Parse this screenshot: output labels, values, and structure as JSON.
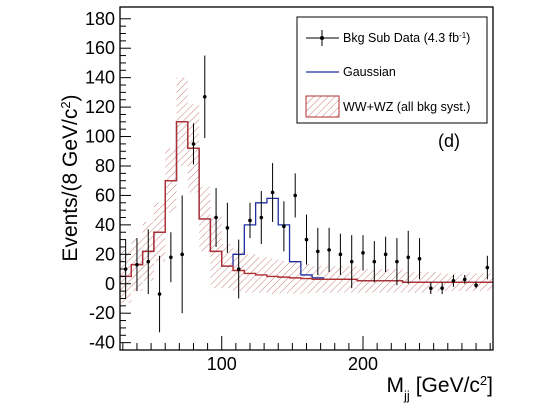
{
  "chart_data": {
    "type": "histogram",
    "xlabel": "M",
    "xlabel_sub": "jj",
    "xlabel_unit": "[GeV/c",
    "xlabel_unit_sup": "2",
    "xlabel_unit_close": "]",
    "ylabel": "Events/(8 GeV/c",
    "ylabel_sup": "2",
    "ylabel_close": ")",
    "xlim": [
      28,
      292
    ],
    "ylim": [
      -45,
      188
    ],
    "xticks": [
      {
        "value": 100,
        "label": "100"
      },
      {
        "value": 200,
        "label": "200"
      }
    ],
    "yticks": [
      {
        "value": -40,
        "label": "-40"
      },
      {
        "value": -20,
        "label": "-20"
      },
      {
        "value": 0,
        "label": "0"
      },
      {
        "value": 20,
        "label": "20"
      },
      {
        "value": 40,
        "label": "40"
      },
      {
        "value": 60,
        "label": "60"
      },
      {
        "value": 80,
        "label": "80"
      },
      {
        "value": 100,
        "label": "100"
      },
      {
        "value": 120,
        "label": "120"
      },
      {
        "value": 140,
        "label": "140"
      },
      {
        "value": 160,
        "label": "160"
      },
      {
        "value": 180,
        "label": "180"
      }
    ],
    "panel_label": "(d)",
    "bin_width": 8,
    "bin_edges_start": 28,
    "legend": {
      "placement": "top-right",
      "entries": [
        {
          "label": "Bkg Sub Data (4.3 fb",
          "sup": "-1",
          "close": ")",
          "style": "marker"
        },
        {
          "label": "Gaussian",
          "style": "line",
          "color": "#1f2fa0"
        },
        {
          "label": "WW+WZ (all bkg syst.)",
          "style": "hatched",
          "color": "#b03030"
        }
      ]
    },
    "series": [
      {
        "name": "Bkg Sub Data (4.3 fb-1)",
        "style": "points",
        "x": [
          32,
          40,
          48,
          56,
          64,
          72,
          80,
          88,
          96,
          104,
          112,
          120,
          128,
          136,
          144,
          152,
          160,
          168,
          176,
          184,
          192,
          200,
          208,
          216,
          224,
          232,
          240,
          248,
          256,
          264,
          272,
          280,
          288
        ],
        "y": [
          10,
          13,
          15,
          -7,
          18,
          20,
          95,
          127,
          45,
          38,
          10,
          43,
          45,
          62,
          39,
          60,
          30,
          22,
          23,
          20,
          15,
          21,
          15,
          20,
          15,
          18,
          17,
          -3,
          -3,
          2,
          3,
          -1,
          11
        ],
        "yerr": [
          20,
          18,
          22,
          26,
          17,
          40,
          14,
          28,
          20,
          17,
          20,
          12,
          18,
          20,
          17,
          15,
          17,
          16,
          15,
          14,
          18,
          12,
          14,
          12,
          16,
          18,
          14,
          4,
          4,
          4,
          3,
          2,
          8
        ]
      },
      {
        "name": "Gaussian",
        "style": "step",
        "color": "#1f2fa0",
        "values": [
          5,
          13,
          22,
          35,
          70,
          110,
          92,
          44,
          22,
          12,
          20,
          40,
          55,
          58,
          40,
          15,
          6,
          4,
          3,
          3,
          3,
          2,
          2,
          2,
          2,
          1,
          1,
          1,
          1,
          1,
          1,
          1,
          1
        ]
      },
      {
        "name": "WW+WZ (all bkg syst.)",
        "style": "step-band",
        "color": "#b03030",
        "values": [
          5,
          13,
          22,
          35,
          70,
          110,
          92,
          44,
          22,
          12,
          9,
          7,
          6,
          5,
          4.5,
          4,
          3.5,
          3,
          3,
          3,
          3,
          2,
          2,
          2,
          2,
          1,
          1,
          1,
          1,
          1,
          1,
          1,
          1
        ],
        "band_halfwidth": [
          18,
          18,
          20,
          20,
          22,
          30,
          30,
          22,
          25,
          15,
          14,
          13,
          12,
          12,
          11,
          11,
          10,
          9,
          9,
          9,
          9,
          8,
          8,
          8,
          8,
          7,
          7,
          7,
          6,
          6,
          6,
          6,
          6
        ]
      }
    ]
  }
}
